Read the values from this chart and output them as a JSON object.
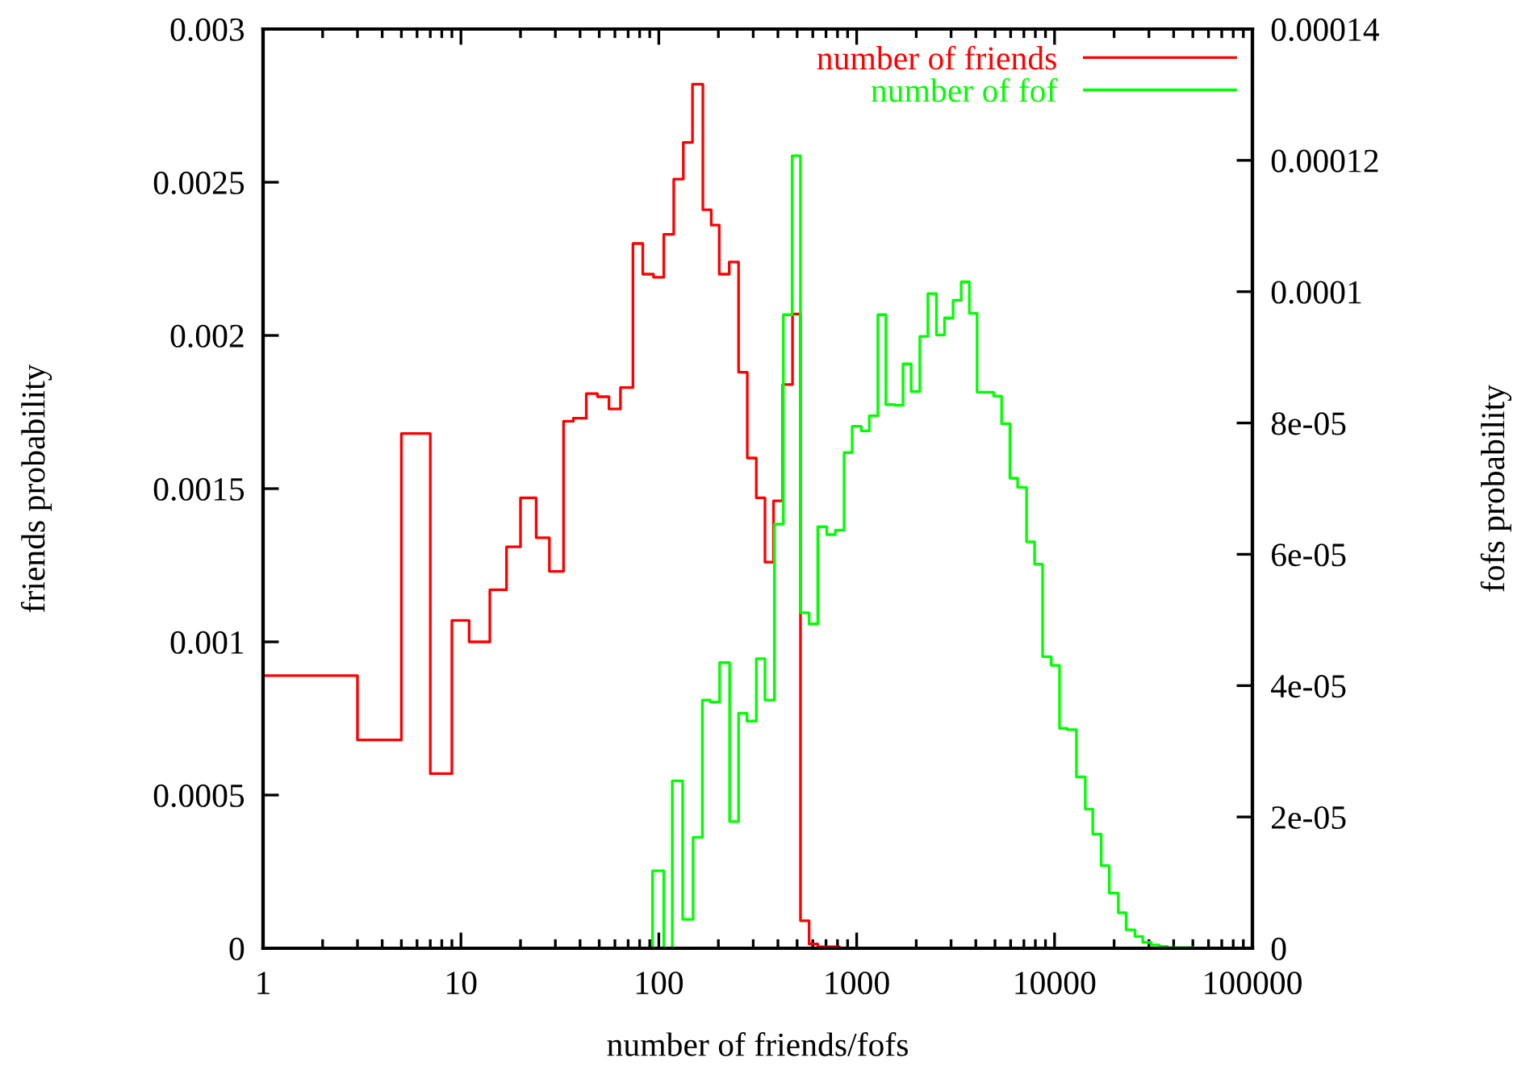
{
  "chart_data": {
    "type": "step",
    "xlabel": "number of friends/fofs",
    "ylabel": "friends probability",
    "y2label": "fofs probability",
    "log": "x",
    "xlim": [
      1,
      100000
    ],
    "xticks": [
      1,
      10,
      100,
      1000,
      10000,
      100000
    ],
    "ylim": [
      0,
      0.003
    ],
    "yticks": [
      0,
      0.0005,
      0.001,
      0.0015,
      0.002,
      0.0025,
      0.003
    ],
    "y2lim": [
      0,
      0.00014
    ],
    "y2ticks": [
      0,
      2e-05,
      4e-05,
      6e-05,
      8e-05,
      0.0001,
      0.00012,
      0.00014
    ],
    "grid": false,
    "legend": "top right",
    "marker": "none",
    "line_style": "solid",
    "series": [
      {
        "name": "number of friends",
        "color": "#ff0000",
        "x": [
          1,
          3,
          5,
          7,
          9,
          11,
          14,
          17,
          20,
          24,
          28,
          33,
          37,
          43,
          49,
          56,
          64,
          74,
          83,
          94,
          106,
          119,
          133,
          148,
          167,
          184,
          202,
          227,
          253,
          280,
          311,
          344,
          380,
          423,
          474,
          520,
          575,
          636,
          700,
          818,
          100000
        ],
        "values": [
          0.00089,
          0.00068,
          0.00168,
          0.00057,
          0.00107,
          0.001,
          0.00117,
          0.00131,
          0.00147,
          0.00134,
          0.00123,
          0.00172,
          0.00173,
          0.00181,
          0.0018,
          0.00176,
          0.00183,
          0.0023,
          0.0022,
          0.00219,
          0.00233,
          0.00251,
          0.00263,
          0.00282,
          0.00241,
          0.00236,
          0.0022,
          0.00224,
          0.00188,
          0.0016,
          0.00147,
          0.00126,
          0.00146,
          0.00184,
          0.00207,
          9e-05,
          1.4e-05,
          5e-06,
          5e-06,
          0,
          0
        ]
      },
      {
        "name": "number of fof",
        "color": "#00ff00",
        "axis": "y2",
        "x": [
          1,
          93,
          106,
          117,
          132,
          149,
          166,
          182,
          203,
          228,
          253,
          279,
          311,
          344,
          384,
          426,
          472,
          520,
          575,
          636,
          706,
          780,
          864,
          949,
          1055,
          1158,
          1280,
          1405,
          1562,
          1715,
          1885,
          2085,
          2290,
          2530,
          2780,
          3070,
          3375,
          3710,
          4060,
          4920,
          5400,
          5950,
          6510,
          7220,
          7930,
          8700,
          9620,
          10600,
          11600,
          12900,
          14300,
          15600,
          17200,
          18900,
          21000,
          23000,
          25500,
          27900,
          30800,
          33800,
          37200,
          50700,
          100000
        ],
        "values": [
          0,
          1.18e-05,
          0,
          2.55e-05,
          4.4e-06,
          1.69e-05,
          3.78e-05,
          3.75e-05,
          4.35e-05,
          1.93e-05,
          3.58e-05,
          3.46e-05,
          4.41e-05,
          3.78e-05,
          6.46e-05,
          9.65e-05,
          0.0001207,
          5.11e-05,
          4.94e-05,
          6.42e-05,
          6.3e-05,
          6.37e-05,
          7.55e-05,
          7.95e-05,
          7.88e-05,
          8.11e-05,
          9.65e-05,
          8.28e-05,
          8.27e-05,
          8.9e-05,
          8.48e-05,
          9.32e-05,
          9.97e-05,
          9.34e-05,
          9.6e-05,
          9.87e-05,
          0.0001015,
          9.67e-05,
          8.47e-05,
          8.41e-05,
          7.99e-05,
          7.16e-05,
          7.02e-05,
          6.19e-05,
          5.85e-05,
          4.44e-05,
          4.31e-05,
          3.35e-05,
          3.33e-05,
          2.61e-05,
          2.12e-05,
          1.74e-05,
          1.26e-05,
          8.4e-06,
          5.4e-06,
          2.8e-06,
          1.8e-06,
          9e-07,
          5e-07,
          3e-07,
          1e-07,
          0,
          0
        ]
      }
    ]
  }
}
